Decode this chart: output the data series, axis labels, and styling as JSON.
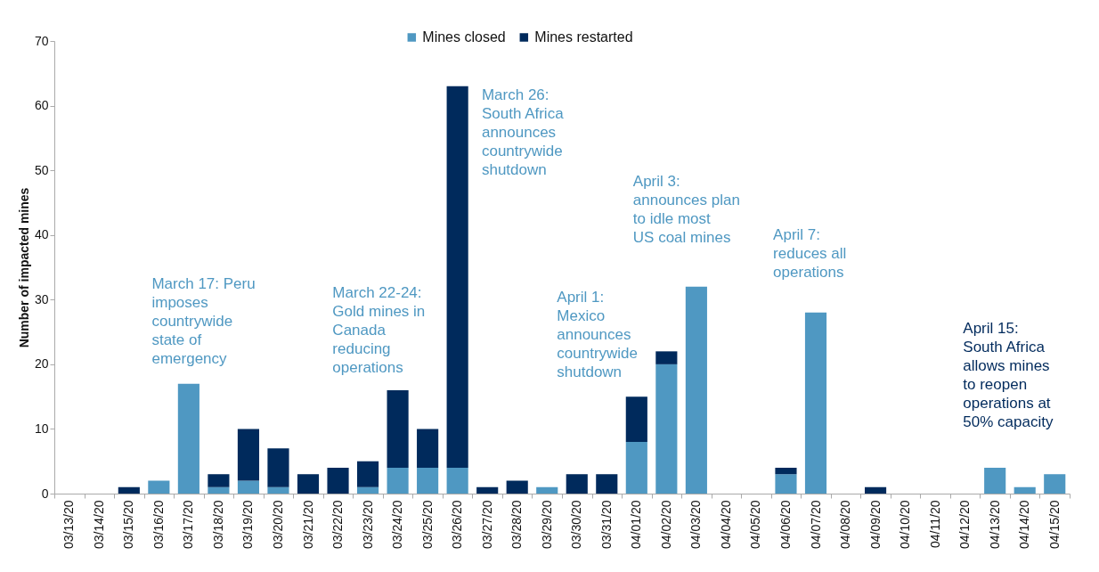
{
  "chart_data": {
    "type": "bar",
    "stacked": true,
    "ylabel": "Number of impacted mines",
    "legend": "top",
    "categories": [
      "03/13/20",
      "03/14/20",
      "03/15/20",
      "03/16/20",
      "03/17/20",
      "03/18/20",
      "03/19/20",
      "03/20/20",
      "03/21/20",
      "03/22/20",
      "03/23/20",
      "03/24/20",
      "03/25/20",
      "03/26/20",
      "03/27/20",
      "03/28/20",
      "03/29/20",
      "03/30/20",
      "03/31/20",
      "04/01/20",
      "04/02/20",
      "04/03/20",
      "04/04/20",
      "04/05/20",
      "04/06/20",
      "04/07/20",
      "04/08/20",
      "04/09/20",
      "04/10/20",
      "04/11/20",
      "04/12/20",
      "04/13/20",
      "04/14/20",
      "04/15/20"
    ],
    "series": [
      {
        "name": "Mines closed",
        "color": "#4f98c2",
        "values": [
          0,
          0,
          0,
          2,
          17,
          1,
          2,
          1,
          0,
          0,
          1,
          4,
          4,
          4,
          0,
          0,
          1,
          0,
          0,
          8,
          20,
          32,
          0,
          0,
          3,
          28,
          0,
          0,
          0,
          0,
          0,
          4,
          1,
          3
        ]
      },
      {
        "name": "Mines restarted",
        "color": "#002a5c",
        "values": [
          0,
          0,
          1,
          0,
          0,
          2,
          8,
          6,
          3,
          4,
          4,
          12,
          6,
          59,
          1,
          2,
          0,
          3,
          3,
          7,
          2,
          0,
          0,
          0,
          1,
          0,
          0,
          1,
          0,
          0,
          0,
          0,
          0,
          0
        ]
      }
    ],
    "ylim": [
      0,
      70
    ],
    "yticks": [
      0,
      10,
      20,
      30,
      40,
      50,
      60,
      70
    ],
    "annotations": [
      "March 17: Peru\nimposes\ncountrywide\nstate of\nemergency",
      "March 22-24:\nGold mines in\nCanada\nreducing\noperations",
      "March 26:\nSouth Africa\nannounces\ncountrywide\nshutdown",
      "April 1:\nMexico\nannounces\ncountrywide\nshutdown",
      "April 3:\nannounces plan\nto idle most\nUS coal mines",
      "April 7:\nreduces all\noperations",
      "April 15:\nSouth Africa\nallows mines\nto reopen\noperations at\n50% capacity"
    ]
  }
}
